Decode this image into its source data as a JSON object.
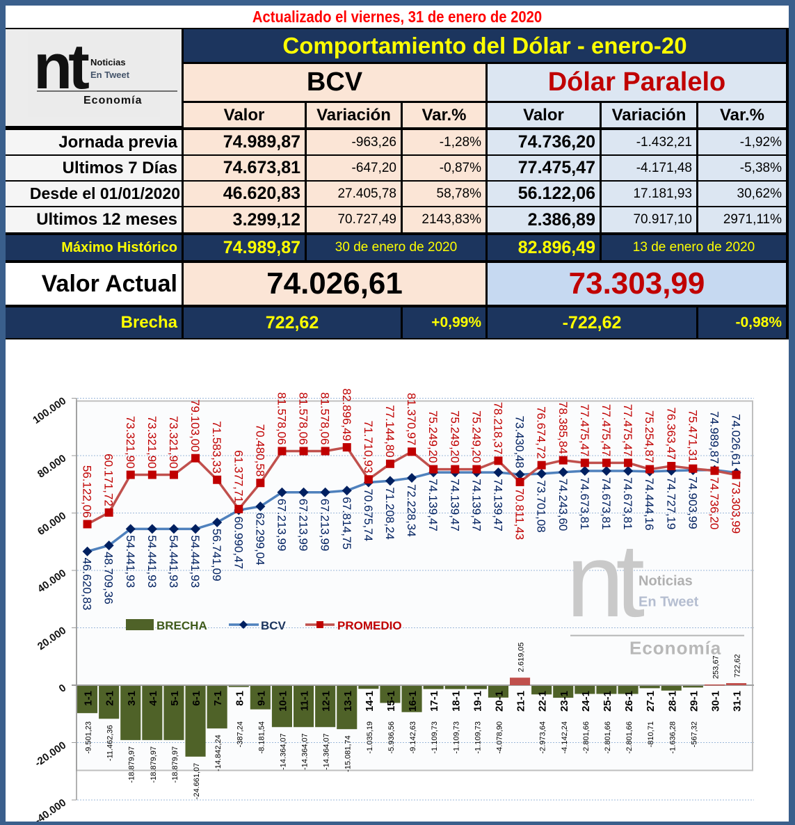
{
  "header": {
    "updated": "Actualizado el  viernes, 31 de enero de 2020",
    "title": "Comportamiento del Dólar -   enero-20",
    "logo": {
      "big": "nt",
      "line1": "Noticias",
      "line2": "En Tweet",
      "line3": "Economía"
    }
  },
  "table": {
    "bcv_title": "BCV",
    "paralelo_title": "Dólar Paralelo",
    "columns": [
      "Valor",
      "Variación",
      "Var.%"
    ],
    "rows": [
      {
        "label": "Jornada previa",
        "bcv": [
          "74.989,87",
          "-963,26",
          "-1,28%"
        ],
        "par": [
          "74.736,20",
          "-1.432,21",
          "-1,92%"
        ]
      },
      {
        "label": "Ultimos 7 Días",
        "bcv": [
          "74.673,81",
          "-647,20",
          "-0,87%"
        ],
        "par": [
          "77.475,47",
          "-4.171,48",
          "-5,38%"
        ]
      },
      {
        "label": "Desde el 01/01/2020",
        "bcv": [
          "46.620,83",
          "27.405,78",
          "58,78%"
        ],
        "par": [
          "56.122,06",
          "17.181,93",
          "30,62%"
        ]
      },
      {
        "label": "Ultimos 12 meses",
        "bcv": [
          "3.299,12",
          "70.727,49",
          "2143,83%"
        ],
        "par": [
          "2.386,89",
          "70.917,10",
          "2971,11%"
        ]
      }
    ],
    "maximo": {
      "label": "Máximo Histórico",
      "bcv_value": "74.989,87",
      "bcv_date": "30 de enero de 2020",
      "par_value": "82.896,49",
      "par_date": "13 de enero de 2020"
    },
    "actual": {
      "label": "Valor Actual",
      "bcv": "74.026,61",
      "par": "73.303,99"
    },
    "brecha": {
      "label": "Brecha",
      "bcv": "722,62",
      "bcv_pct": "+0,99%",
      "par": "-722,62",
      "par_pct": "-0,98%"
    }
  },
  "colors": {
    "navy": "#1c355e",
    "yellow": "#ffff00",
    "red": "#c00000",
    "bcv_line": "#4f81bd",
    "bcv_marker": "#002060",
    "promedio": "#c0504d",
    "brecha_neg": "#4f6228",
    "brecha_pos": "#c0504d"
  },
  "chart_data": {
    "type": "bar+line",
    "title": "",
    "categories": [
      "1-1",
      "2-1",
      "3-1",
      "4-1",
      "5-1",
      "6-1",
      "7-1",
      "8-1",
      "9-1",
      "10-1",
      "11-1",
      "12-1",
      "13-1",
      "14-1",
      "15-1",
      "16-1",
      "17-1",
      "18-1",
      "19-1",
      "20-1",
      "21-1",
      "22-1",
      "23-1",
      "24-1",
      "25-1",
      "26-1",
      "27-1",
      "28-1",
      "29-1",
      "30-1",
      "31-1"
    ],
    "series": [
      {
        "name": "BRECHA",
        "type": "bar",
        "values": [
          -9501.23,
          -11462.36,
          -18879.97,
          -18879.97,
          -18879.97,
          -24661.07,
          -14842.24,
          -387.24,
          -8181.54,
          -14364.07,
          -14364.07,
          -14364.07,
          -15081.74,
          -1035.19,
          -5936.56,
          -9142.63,
          -1109.73,
          -1109.73,
          -1109.73,
          -4078.9,
          2619.05,
          -2973.64,
          -4142.24,
          -2801.66,
          -2801.66,
          -2801.66,
          -810.71,
          -1636.28,
          -567.32,
          253.67,
          722.62
        ],
        "labels": [
          "-9.501,23",
          "-11.462,36",
          "-18.879,97",
          "-18.879,97",
          "-18.879,97",
          "-24.661,07",
          "-14.842,24",
          "-387,24",
          "-8.181,54",
          "-14.364,07",
          "-14.364,07",
          "-14.364,07",
          "-15.081,74",
          "-1.035,19",
          "-5.936,56",
          "-9.142,63",
          "-1.109,73",
          "-1.109,73",
          "-1.109,73",
          "-4.078,90",
          "2.619,05",
          "-2.973,64",
          "-4.142,24",
          "-2.801,66",
          "-2.801,66",
          "-2.801,66",
          "-810,71",
          "-1.636,28",
          "-567,32",
          "253,67",
          "722,62"
        ]
      },
      {
        "name": "BCV",
        "type": "line",
        "values": [
          46620.83,
          48709.36,
          54441.93,
          54441.93,
          54441.93,
          54441.93,
          56741.09,
          60990.47,
          62299.04,
          67213.99,
          67213.99,
          67213.99,
          67814.75,
          70675.74,
          71208.24,
          72228.34,
          74139.47,
          74139.47,
          74139.47,
          74139.47,
          73430.48,
          73701.08,
          74243.6,
          74673.81,
          74673.81,
          74673.81,
          74444.16,
          74727.19,
          74903.99,
          74989.87,
          74026.61
        ],
        "labels": [
          "46.620,83",
          "48.709,36",
          "54.441,93",
          "54.441,93",
          "54.441,93",
          "54.441,93",
          "56.741,09",
          "60.990,47",
          "62.299,04",
          "67.213,99",
          "67.213,99",
          "67.213,99",
          "67.814,75",
          "70.675,74",
          "71.208,24",
          "72.228,34",
          "74.139,47",
          "74.139,47",
          "74.139,47",
          "74.139,47",
          "73.430,48",
          "73.701,08",
          "74.243,60",
          "74.673,81",
          "74.673,81",
          "74.673,81",
          "74.444,16",
          "74.727,19",
          "74.903,99",
          "74.989,87",
          "74.026,61"
        ]
      },
      {
        "name": "PROMEDIO",
        "type": "line",
        "values": [
          56122.06,
          60171.72,
          73321.9,
          73321.9,
          73321.9,
          79103.0,
          71583.33,
          61377.71,
          70480.58,
          81578.06,
          81578.06,
          81578.06,
          82896.49,
          71710.93,
          77144.8,
          81370.97,
          75249.2,
          75249.2,
          75249.2,
          78218.37,
          70811.43,
          76674.72,
          78385.84,
          77475.47,
          77475.47,
          77475.47,
          75254.87,
          76363.47,
          75471.31,
          74736.2,
          73303.99
        ],
        "labels": [
          "56.122,06",
          "60.171,72",
          "73.321,90",
          "73.321,90",
          "73.321,90",
          "79.103,00",
          "71.583,33",
          "61.377,71",
          "70.480,58",
          "81.578,06",
          "81.578,06",
          "81.578,06",
          "82.896,49",
          "71.710,93",
          "77.144,80",
          "81.370,97",
          "75.249,20",
          "75.249,20",
          "75.249,20",
          "78.218,37",
          "70.811,43",
          "76.674,72",
          "78.385,84",
          "77.475,47",
          "77.475,47",
          "77.475,47",
          "75.254,87",
          "76.363,47",
          "75.471,31",
          "74.736,20",
          "73.303,99"
        ]
      }
    ],
    "y_ticks": [
      "100.000",
      "80.000",
      "60.000",
      "40.000",
      "20.000",
      "0",
      "-20.000",
      "-40.000"
    ],
    "ylim": [
      -40000,
      100000
    ],
    "grid": true,
    "legend": [
      "BRECHA",
      "BCV",
      "PROMEDIO"
    ],
    "legend_position": "inside-middle-left",
    "watermark": {
      "big": "nt",
      "line1": "Noticias",
      "line2": "En Tweet",
      "line3": "Economía"
    }
  }
}
